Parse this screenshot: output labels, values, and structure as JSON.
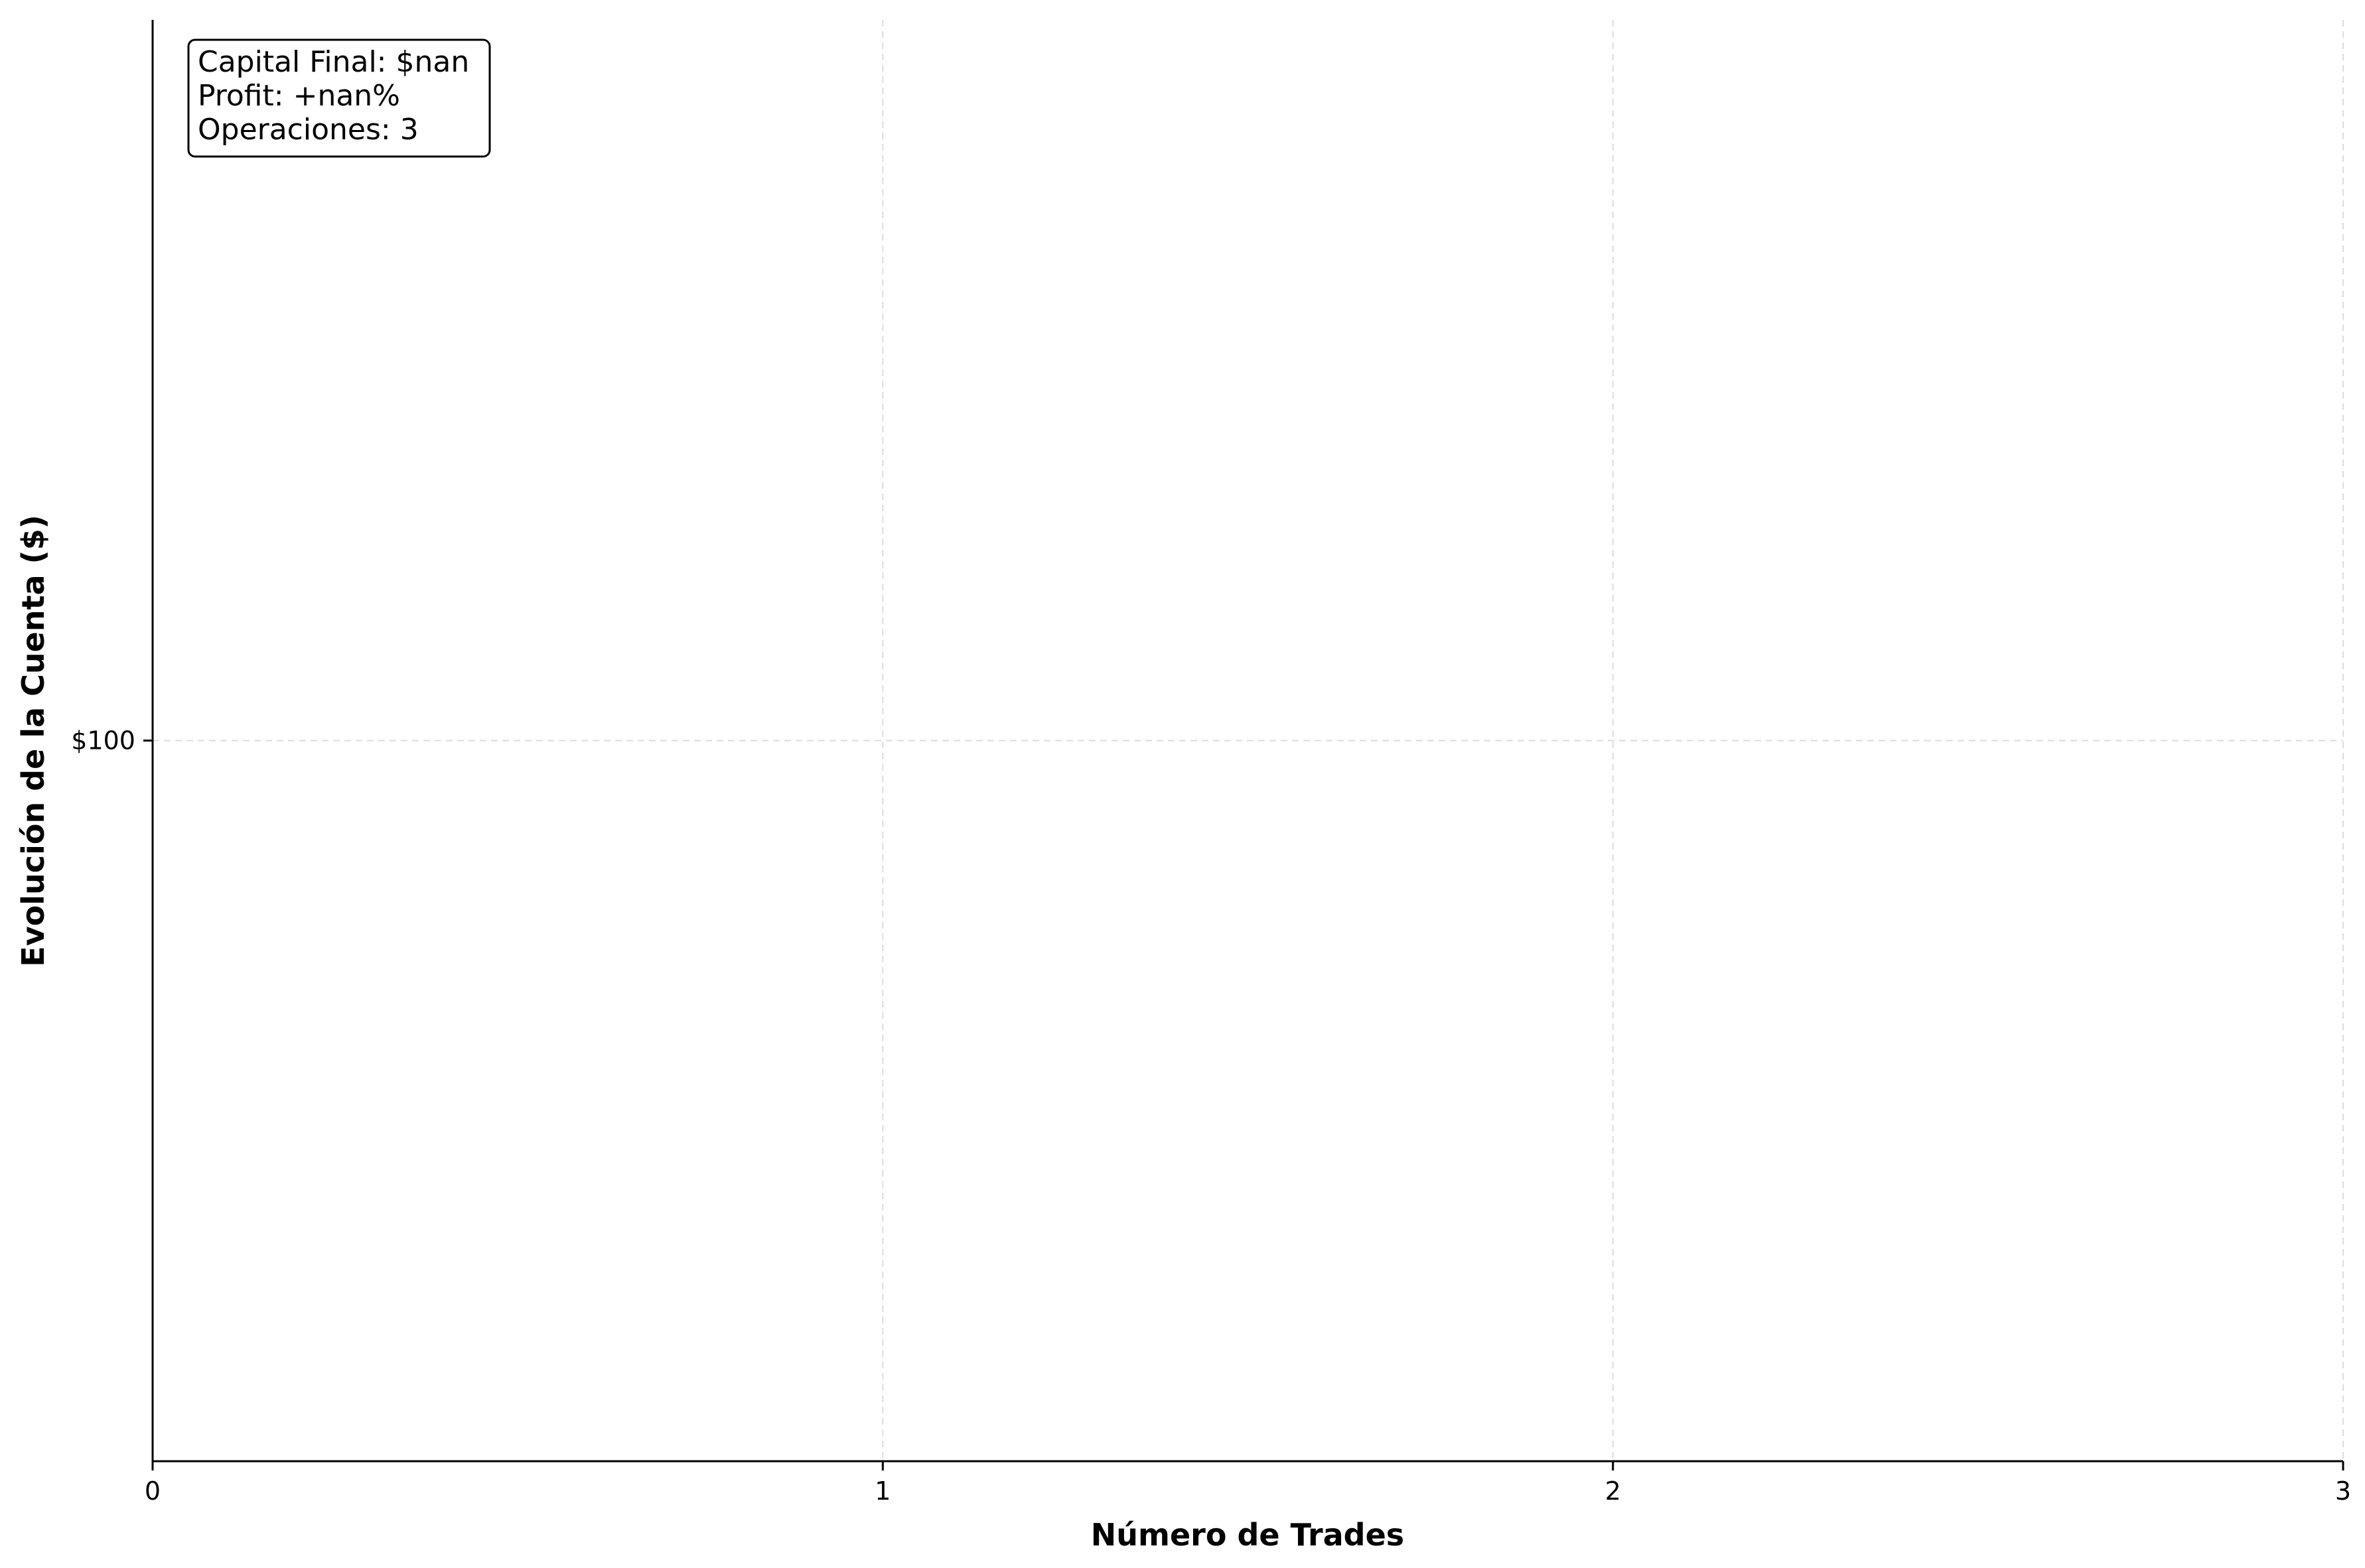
{
  "chart_data": {
    "type": "line",
    "title": "",
    "xlabel": "Número de Trades",
    "ylabel": "Evolución de la Cuenta ($)",
    "x_ticks": [
      0,
      1,
      2,
      3
    ],
    "x_tick_labels": [
      "0",
      "1",
      "2",
      "3"
    ],
    "xlim": [
      0,
      3
    ],
    "y_ticks": [
      100
    ],
    "y_tick_labels": [
      "$100"
    ],
    "ylim": [
      0,
      200
    ],
    "grid": true,
    "series": [
      {
        "x": [
          0,
          1,
          2,
          3
        ],
        "values": [
          null,
          null,
          null,
          null
        ]
      }
    ],
    "info_box": {
      "lines": [
        "Capital Final: $nan",
        "Profit: +nan%",
        "Operaciones: 3"
      ],
      "placement": "top-left"
    }
  }
}
